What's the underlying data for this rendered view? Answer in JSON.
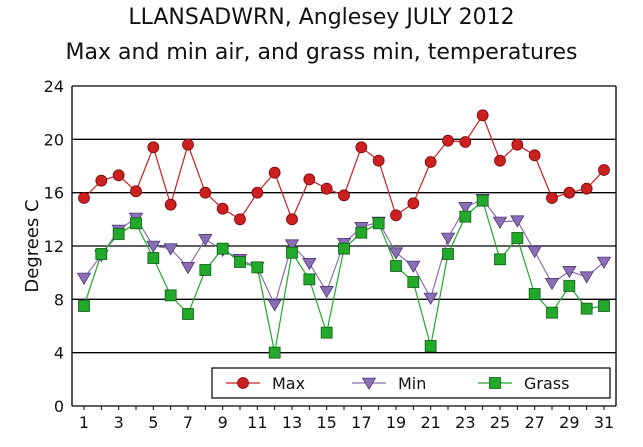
{
  "chart_data": {
    "type": "line",
    "title": "LLANSADWRN, Anglesey JULY 2012",
    "subtitle": "Max and min air, and grass min, temperatures",
    "xlabel": "",
    "ylabel": "Degrees C",
    "xlim": [
      1,
      31
    ],
    "ylim": [
      0,
      24
    ],
    "yticks": [
      0,
      4,
      8,
      12,
      16,
      20,
      24
    ],
    "xticks": [
      1,
      3,
      5,
      7,
      9,
      11,
      13,
      15,
      17,
      19,
      21,
      23,
      25,
      27,
      29,
      31
    ],
    "grid": true,
    "legend_position": "bottom-right",
    "x": [
      1,
      2,
      3,
      4,
      5,
      6,
      7,
      8,
      9,
      10,
      11,
      12,
      13,
      14,
      15,
      16,
      17,
      18,
      19,
      20,
      21,
      22,
      23,
      24,
      25,
      26,
      27,
      28,
      29,
      30,
      31
    ],
    "series": [
      {
        "name": "Max",
        "color": "#cc1f1f",
        "marker": "circle",
        "values": [
          15.6,
          16.9,
          17.3,
          16.1,
          19.4,
          15.1,
          19.6,
          16.0,
          14.8,
          14.0,
          16.0,
          17.5,
          14.0,
          17.0,
          16.3,
          15.8,
          19.4,
          18.4,
          14.3,
          15.2,
          18.3,
          19.9,
          19.8,
          21.8,
          18.4,
          19.6,
          18.8,
          15.6,
          16.0,
          16.3,
          17.7
        ]
      },
      {
        "name": "Min",
        "color": "#8a6fb5",
        "marker": "triangle-down",
        "values": [
          9.6,
          11.3,
          13.2,
          14.1,
          12.0,
          11.8,
          10.4,
          12.5,
          11.7,
          11.0,
          10.4,
          7.6,
          12.1,
          10.7,
          8.6,
          12.2,
          13.4,
          13.8,
          11.5,
          10.5,
          8.1,
          12.6,
          14.9,
          15.5,
          13.8,
          13.9,
          11.6,
          9.2,
          10.1,
          9.7,
          10.8
        ]
      },
      {
        "name": "Grass",
        "color": "#22a82a",
        "marker": "square",
        "values": [
          7.5,
          11.4,
          12.9,
          13.7,
          11.1,
          8.3,
          6.9,
          10.2,
          11.8,
          10.8,
          10.4,
          4.0,
          11.5,
          9.5,
          5.5,
          11.8,
          13.0,
          13.7,
          10.5,
          9.3,
          4.5,
          11.4,
          14.2,
          15.4,
          11.0,
          12.6,
          8.4,
          7.0,
          9.0,
          7.3,
          7.5
        ]
      }
    ]
  }
}
